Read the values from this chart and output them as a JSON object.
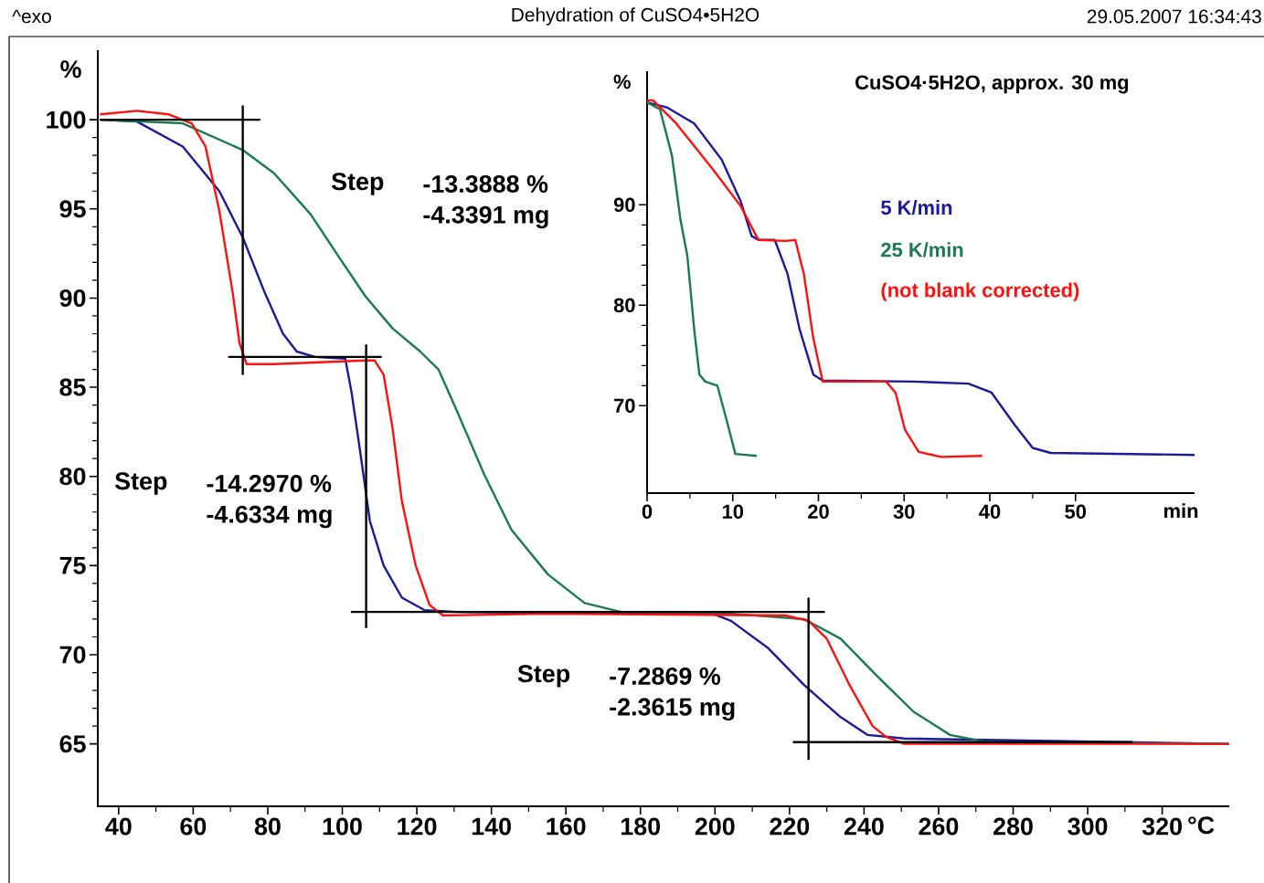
{
  "chart_data": [
    {
      "type": "line",
      "title": "Dehydration of CuSO4•5H2O",
      "xlabel": "°C",
      "ylabel": "%",
      "annotations": [
        "^exo",
        "29.05.2007 16:34:43",
        "Step",
        "-13.3888 %",
        "-4.3391 mg",
        "Step",
        "-14.2970 %",
        "-4.6334 mg",
        "Step",
        "-7.2869 %",
        "-2.3615 mg"
      ],
      "xlim": [
        34.4,
        338
      ],
      "ylim": [
        61.5,
        103.9
      ],
      "xticks": [
        40,
        60,
        80,
        100,
        120,
        140,
        160,
        180,
        200,
        220,
        240,
        260,
        280,
        300,
        320
      ],
      "yticks": [
        65,
        70,
        75,
        80,
        85,
        90,
        95,
        100
      ],
      "series": [
        {
          "color": "#1a1a9a",
          "x": [
            35,
            44.9,
            57.2,
            67,
            73.3,
            79.2,
            84.1,
            87.8,
            92.7,
            100.8,
            102.5,
            105,
            107.4,
            111.1,
            116,
            122.1,
            130.7,
            199.4,
            204.3,
            214.1,
            223.9,
            233.7,
            241,
            250.8,
            337.9
          ],
          "values": [
            100,
            99.9,
            98.5,
            96.0,
            93.4,
            90.3,
            88.0,
            87.0,
            86.7,
            86.6,
            84.7,
            81.1,
            77.5,
            75.0,
            73.2,
            72.5,
            72.4,
            72.3,
            71.9,
            70.4,
            68.3,
            66.5,
            65.5,
            65.3,
            65.0
          ]
        },
        {
          "color": "#1a7a50",
          "x": [
            35,
            57.2,
            73.3,
            81.7,
            91.5,
            98.8,
            106.2,
            113.5,
            120.9,
            125.8,
            130.7,
            138.1,
            145.4,
            155.2,
            165,
            174.8,
            204.3,
            223.9,
            233.7,
            243.5,
            253.3,
            263.1,
            272.9,
            337.9
          ],
          "values": [
            100,
            99.8,
            98.3,
            97.0,
            94.7,
            92.4,
            90.1,
            88.3,
            87.0,
            86.0,
            83.7,
            80.1,
            77.0,
            74.5,
            72.9,
            72.4,
            72.3,
            72.0,
            70.9,
            68.8,
            66.8,
            65.5,
            65.1,
            65.0
          ]
        },
        {
          "color": "#ff1010",
          "x": [
            35,
            44.9,
            53.5,
            59.6,
            63.3,
            67,
            70.6,
            72.4,
            74.3,
            81.7,
            106.2,
            108.7,
            111.1,
            113.5,
            116,
            119.7,
            123.4,
            127,
            155.2,
            218.9,
            225.1,
            230,
            236.1,
            242.3,
            245.9,
            250.8,
            337.9
          ],
          "values": [
            100.3,
            100.5,
            100.3,
            99.8,
            98.5,
            94.9,
            90.3,
            87.5,
            86.3,
            86.3,
            86.5,
            86.5,
            85.7,
            82.7,
            78.6,
            75.0,
            72.8,
            72.2,
            72.3,
            72.2,
            71.9,
            70.9,
            68.3,
            66.0,
            65.4,
            65.0,
            65.0
          ]
        },
        {
          "color": "#000000",
          "x": [
            35,
            78
          ],
          "values": [
            100,
            100
          ]
        },
        {
          "color": "#000000",
          "x": [
            73.3,
            73.3
          ],
          "values": [
            100.8,
            85.7
          ]
        },
        {
          "color": "#000000",
          "x": [
            69.4,
            110.6
          ],
          "values": [
            86.7,
            86.7
          ]
        },
        {
          "color": "#000000",
          "x": [
            106.4,
            106.4
          ],
          "values": [
            87.4,
            71.5
          ]
        },
        {
          "color": "#000000",
          "x": [
            102.3,
            229.5
          ],
          "values": [
            72.4,
            72.4
          ]
        },
        {
          "color": "#000000",
          "x": [
            225.1,
            225.1
          ],
          "values": [
            73.2,
            64.1
          ]
        },
        {
          "color": "#000000",
          "x": [
            220.9,
            312
          ],
          "values": [
            65.1,
            65.1
          ]
        }
      ]
    },
    {
      "type": "line",
      "title": "CuSO4·5H2O, approx. 30 mg",
      "xlabel": "min",
      "ylabel": "%",
      "xlim": [
        0,
        63.9
      ],
      "ylim": [
        61.3,
        103.3
      ],
      "xticks": [
        0,
        10,
        20,
        30,
        40,
        50
      ],
      "yticks": [
        70,
        80,
        90
      ],
      "series": [
        {
          "name": "5 K/min",
          "color": "#1a1a9a",
          "x": [
            0,
            2.3,
            5.5,
            8.7,
            10.9,
            12.2,
            13.0,
            14.9,
            16.4,
            17.8,
            19.4,
            20.5,
            31.1,
            37.5,
            40.2,
            42.9,
            45,
            47.1,
            63.9
          ],
          "values": [
            100.2,
            99.7,
            98.1,
            94.5,
            90.4,
            86.9,
            86.5,
            86.5,
            83.1,
            77.6,
            73.1,
            72.5,
            72.4,
            72.2,
            71.3,
            68.1,
            65.8,
            65.3,
            65.1
          ]
        },
        {
          "name": "25 K/min",
          "color": "#1a7a50",
          "x": [
            0,
            1.5,
            2.9,
            3.9,
            4.7,
            5.5,
            6.1,
            6.8,
            8.2,
            9.3,
            10.3,
            12.8
          ],
          "values": [
            100.2,
            99.5,
            94.9,
            88.5,
            84.9,
            77.6,
            73.1,
            72.4,
            72.0,
            68.5,
            65.2,
            65.0
          ]
        },
        {
          "name": "(not blank corrected)",
          "color": "#ff1010",
          "x": [
            0,
            0.7,
            3.4,
            7.7,
            10.9,
            13.0,
            16.2,
            17.3,
            18.3,
            19.4,
            20.5,
            27.9,
            29.0,
            30.1,
            31.7,
            34.3,
            39.1
          ],
          "values": [
            100.4,
            100.4,
            98.1,
            93.5,
            89.9,
            86.5,
            86.4,
            86.5,
            83.1,
            76.7,
            72.4,
            72.4,
            71.3,
            67.6,
            65.4,
            64.9,
            65.0
          ]
        }
      ]
    }
  ]
}
